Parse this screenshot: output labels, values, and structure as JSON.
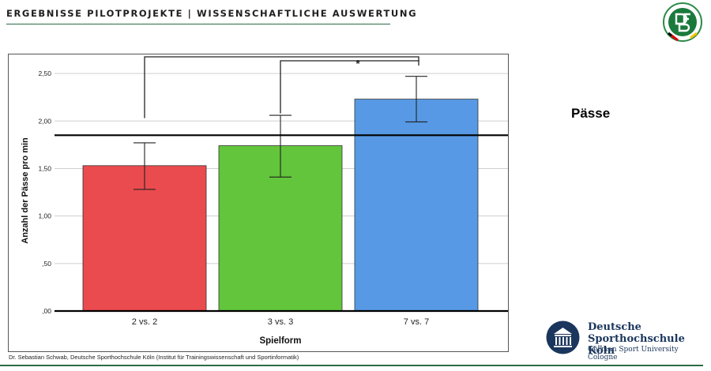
{
  "header": {
    "title": "ERGEBNISSE PILOTPROJEKTE | WISSENSCHAFTLICHE AUSWERTUNG"
  },
  "section_title": "Pässe",
  "footer": "Dr. Sebastian Schwab, Deutsche Sporthochschule Köln (Institut für Trainingswissenschaft und Sportinformatik)",
  "dshs_logo": {
    "name_line1": "Deutsche",
    "name_line2": "Sporthochschule Köln",
    "subtitle": "German Sport University Cologne"
  },
  "colors": {
    "accent_line": "#2d6b45",
    "brand_blue": "#1b365d"
  },
  "chart_data": {
    "type": "bar",
    "categories": [
      "2 vs. 2",
      "3 vs. 3",
      "7 vs. 7"
    ],
    "values": [
      1.53,
      1.74,
      2.23
    ],
    "error_low": [
      1.28,
      1.41,
      1.99
    ],
    "error_high": [
      1.77,
      2.06,
      2.47
    ],
    "colors": [
      "#ea4b4e",
      "#62c53b",
      "#5799e4"
    ],
    "xlabel": "Spielform",
    "ylabel": "Anzahl der Pässe pro min",
    "ylim": [
      0,
      2.7
    ],
    "yticks": [
      0,
      0.5,
      1.0,
      1.5,
      2.0,
      2.5
    ],
    "ytick_labels": [
      ",00",
      ",50",
      "1,00",
      "1,50",
      "2,00",
      "2,50"
    ],
    "reference_line": 1.85,
    "grid": true,
    "significance": [
      {
        "from": 0,
        "to": 2,
        "label": ""
      },
      {
        "from": 1,
        "to": 2,
        "label": "*"
      }
    ]
  }
}
